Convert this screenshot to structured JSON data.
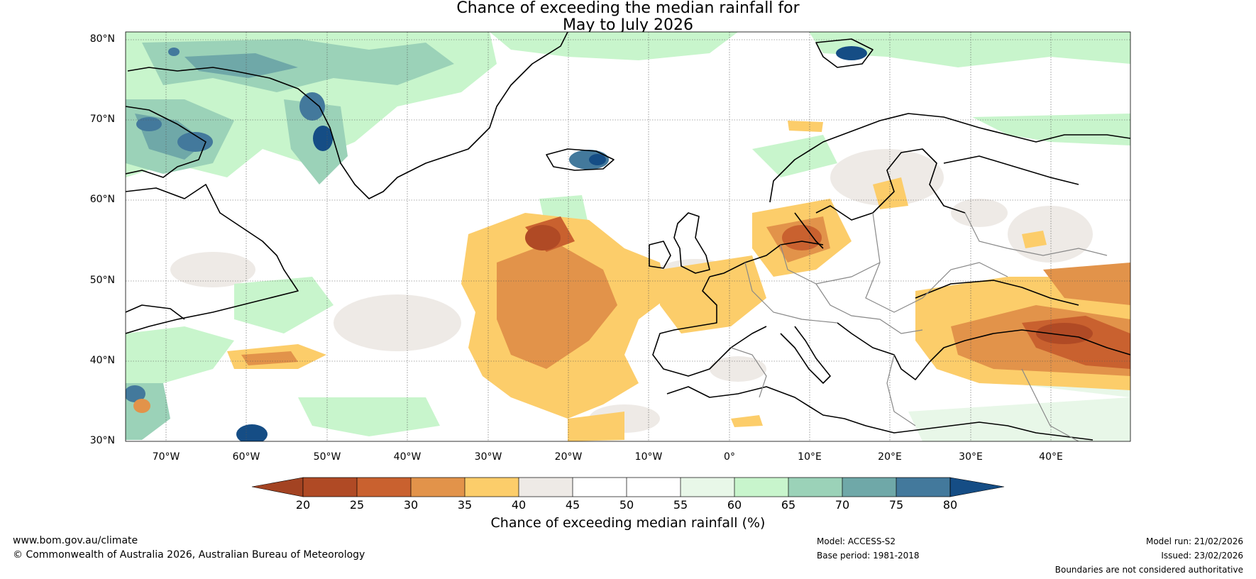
{
  "title": {
    "line1": "Chance of exceeding the median rainfall for",
    "line2": "May to July 2026"
  },
  "map": {
    "lat_labels": [
      "80°N",
      "70°N",
      "60°N",
      "50°N",
      "40°N",
      "30°N"
    ],
    "lon_labels": [
      "70°W",
      "60°W",
      "50°W",
      "40°W",
      "30°W",
      "20°W",
      "10°W",
      "0°",
      "10°E",
      "20°E",
      "30°E",
      "40°E"
    ],
    "colors": {
      "c20_25": "#b04a25",
      "c25_30": "#c9612f",
      "c30_35": "#e2934a",
      "c35_40": "#fccd6a",
      "c40_45": "#eeeae6",
      "c45_50": "#ffffff",
      "c50_55": "#ffffff",
      "c55_60": "#e8f7e8",
      "c60_65": "#c8f5cc",
      "c65_70": "#9bd2b8",
      "c70_75": "#6fa8a8",
      "c75_80": "#43799c",
      "over": "#154d85",
      "under": "#a34322"
    }
  },
  "colorbar": {
    "ticks": [
      "20",
      "25",
      "30",
      "35",
      "40",
      "45",
      "50",
      "55",
      "60",
      "65",
      "70",
      "75",
      "80"
    ],
    "label": "Chance of exceeding median rainfall (%)"
  },
  "footer": {
    "website": "www.bom.gov.au/climate",
    "copyright": "© Commonwealth of Australia 2026, Australian Bureau of Meteorology",
    "model": "Model: ACCESS-S2",
    "base_period": "Base period: 1981-2018",
    "model_run": "Model run: 21/02/2026",
    "issued": "Issued: 23/02/2026",
    "disclaimer": "Boundaries are not considered authoritative"
  }
}
